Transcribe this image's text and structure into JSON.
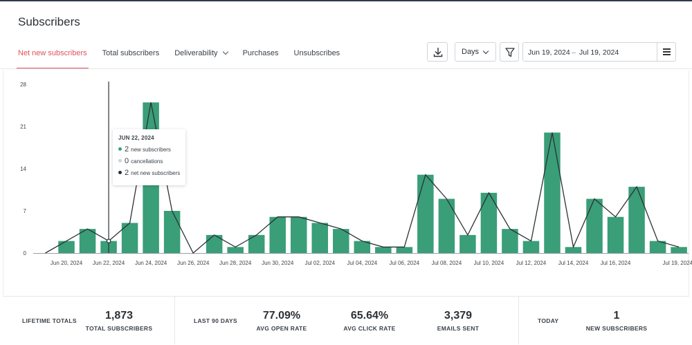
{
  "page": {
    "title": "Subscribers"
  },
  "tabs": [
    {
      "label": "Net new subscribers",
      "active": true
    },
    {
      "label": "Total subscribers",
      "active": false
    },
    {
      "label": "Deliverability",
      "active": false,
      "dropdown": true
    },
    {
      "label": "Purchases",
      "active": false
    },
    {
      "label": "Unsubscribes",
      "active": false
    }
  ],
  "toolbar": {
    "interval": "Days",
    "date_from": "Jun 19, 2024",
    "date_sep": "–",
    "date_to": "Jul 19, 2024"
  },
  "colors": {
    "accent": "#e0515c",
    "bar": "#3a9e78",
    "line": "#2b3137"
  },
  "chart_data": {
    "type": "bar",
    "x": [
      "Jun 19, 2024",
      "Jun 20, 2024",
      "Jun 21, 2024",
      "Jun 22, 2024",
      "Jun 23, 2024",
      "Jun 24, 2024",
      "Jun 25, 2024",
      "Jun 26, 2024",
      "Jun 27, 2024",
      "Jun 28, 2024",
      "Jun 29, 2024",
      "Jun 30, 2024",
      "Jul 01, 2024",
      "Jul 02, 2024",
      "Jul 03, 2024",
      "Jul 04, 2024",
      "Jul 05, 2024",
      "Jul 06, 2024",
      "Jul 07, 2024",
      "Jul 08, 2024",
      "Jul 09, 2024",
      "Jul 10, 2024",
      "Jul 11, 2024",
      "Jul 12, 2024",
      "Jul 13, 2024",
      "Jul 14, 2024",
      "Jul 15, 2024",
      "Jul 16, 2024",
      "Jul 17, 2024",
      "Jul 18, 2024",
      "Jul 19, 2024"
    ],
    "series": [
      {
        "type": "bar",
        "values": [
          0,
          2,
          4,
          2,
          5,
          25,
          7,
          0,
          3,
          1,
          3,
          6,
          6,
          5,
          4,
          2,
          1,
          1,
          13,
          9,
          3,
          10,
          4,
          2,
          20,
          1,
          9,
          6,
          11,
          2,
          1
        ]
      },
      {
        "type": "line",
        "values": [
          0,
          2,
          4,
          2,
          5,
          25,
          7,
          0,
          3,
          1,
          3,
          6,
          6,
          5,
          4,
          2,
          1,
          1,
          13,
          9,
          3,
          10,
          4,
          2,
          20,
          1,
          9,
          6,
          11,
          2,
          1
        ]
      }
    ],
    "x_tick_labels": [
      "Jun 20, 2024",
      "Jun 22, 2024",
      "Jun 24, 2024",
      "Jun 26, 2024",
      "Jun 28, 2024",
      "Jun 30, 2024",
      "Jul 02, 2024",
      "Jul 04, 2024",
      "Jul 06, 2024",
      "Jul 08, 2024",
      "Jul 10, 2024",
      "Jul 12, 2024",
      "Jul 14, 2024",
      "Jul 16, 2024",
      "Jul 19, 2024"
    ],
    "y_ticks": [
      0,
      7,
      14,
      21,
      28
    ],
    "ylim": [
      0,
      28
    ],
    "grid": false,
    "hover_date": "Jun 22, 2024"
  },
  "tooltip": {
    "date": "JUN 22, 2024",
    "rows": [
      {
        "value": "2",
        "label": "new subscribers",
        "color": "#3a9e78"
      },
      {
        "value": "0",
        "label": "cancellations",
        "color": "#cfd3d8"
      },
      {
        "value": "2",
        "label": "net new subscribers",
        "color": "#2b3137"
      }
    ]
  },
  "stats": {
    "lifetime_label": "LIFETIME TOTALS",
    "total_subscribers_value": "1,873",
    "total_subscribers_label": "TOTAL SUBSCRIBERS",
    "period_label": "LAST 90 DAYS",
    "open_rate_value": "77.09%",
    "open_rate_label": "AVG OPEN RATE",
    "click_rate_value": "65.64%",
    "click_rate_label": "AVG CLICK RATE",
    "emails_sent_value": "3,379",
    "emails_sent_label": "EMAILS SENT",
    "today_label": "TODAY",
    "new_subscribers_value": "1",
    "new_subscribers_label": "NEW SUBSCRIBERS"
  }
}
